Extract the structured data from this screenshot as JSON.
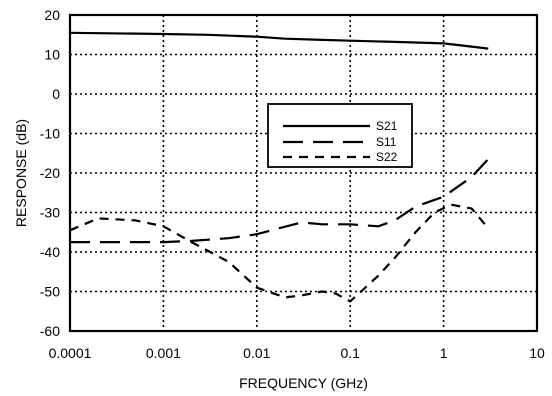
{
  "chart_data": {
    "type": "line",
    "title": "",
    "xlabel": "FREQUENCY (GHz)",
    "ylabel": "RESPONSE (dB)",
    "x_scale": "log",
    "xlim": [
      0.0001,
      10
    ],
    "ylim": [
      -60,
      20
    ],
    "x_ticks": [
      0.0001,
      0.001,
      0.01,
      0.1,
      1,
      10
    ],
    "x_tick_labels": [
      "0.0001",
      "0.001",
      "0.01",
      "0.1",
      "1",
      "10"
    ],
    "y_ticks": [
      20,
      10,
      0,
      -10,
      -20,
      -30,
      -40,
      -50,
      -60
    ],
    "y_tick_labels": [
      "20",
      "10",
      "0",
      "-10",
      "-20",
      "-30",
      "-40",
      "-50",
      "-60"
    ],
    "grid": true,
    "legend_position": "center",
    "series": [
      {
        "name": "S21",
        "line_style": "solid",
        "x": [
          0.0001,
          0.001,
          0.003,
          0.01,
          0.02,
          0.05,
          0.1,
          0.3,
          1,
          2,
          3
        ],
        "y": [
          15.5,
          15.2,
          15.0,
          14.5,
          14.0,
          13.7,
          13.5,
          13.2,
          12.8,
          12.0,
          11.5
        ]
      },
      {
        "name": "S11",
        "line_style": "long-dash",
        "x": [
          0.0001,
          0.0005,
          0.001,
          0.002,
          0.005,
          0.01,
          0.03,
          0.05,
          0.1,
          0.2,
          0.3,
          0.5,
          1,
          2,
          3
        ],
        "y": [
          -37.5,
          -37.5,
          -37.5,
          -37.2,
          -36.5,
          -35.5,
          -32.5,
          -33.0,
          -33.0,
          -33.5,
          -32.0,
          -28.5,
          -26.0,
          -21.0,
          -16.5
        ]
      },
      {
        "name": "S22",
        "line_style": "short-dash",
        "x": [
          0.0001,
          0.0002,
          0.0005,
          0.001,
          0.002,
          0.005,
          0.01,
          0.02,
          0.03,
          0.05,
          0.07,
          0.1,
          0.2,
          0.3,
          0.5,
          0.8,
          1.2,
          2,
          3
        ],
        "y": [
          -34.5,
          -31.5,
          -32.0,
          -33.5,
          -37.5,
          -42.5,
          -49.0,
          -51.5,
          -51.0,
          -50.0,
          -50.5,
          -52.5,
          -46.0,
          -41.5,
          -35.0,
          -30.0,
          -28.0,
          -29.0,
          -34.0
        ]
      }
    ]
  }
}
